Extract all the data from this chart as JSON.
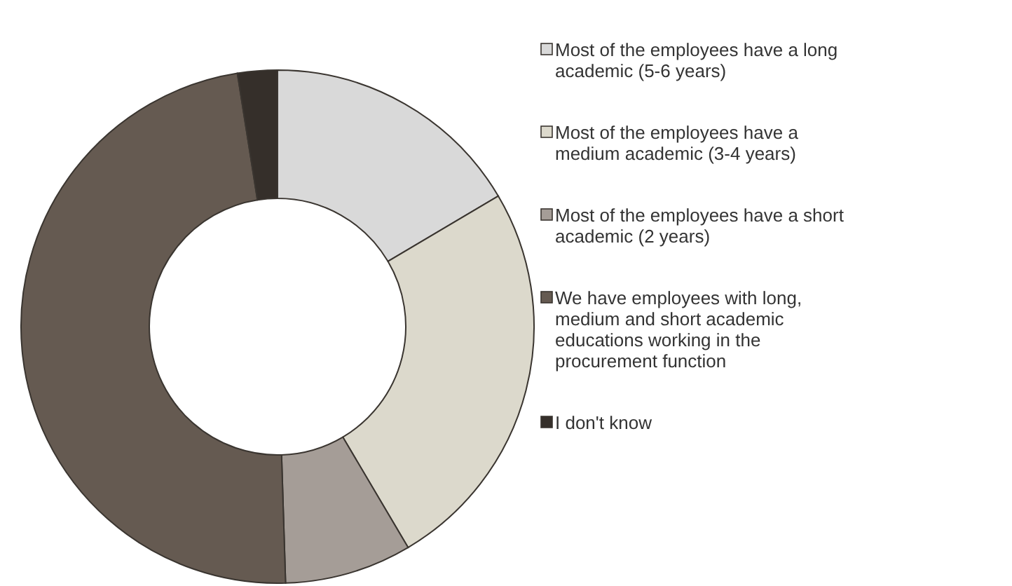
{
  "chart_data": {
    "type": "donut",
    "categories": [
      "Most of the employees have a long academic (5-6 years)",
      "Most of the employees have a medium academic (3-4 years)",
      "Most of the employees have a short academic (2 years)",
      "We have employees with long, medium and short academic educations working in the procurement function",
      "I don't know"
    ],
    "values": [
      16.5,
      25,
      8,
      48,
      2.5
    ],
    "colors": [
      "#d9d9d9",
      "#dcd9cc",
      "#a59d97",
      "#655a51",
      "#352f2a"
    ],
    "legend": "right"
  }
}
